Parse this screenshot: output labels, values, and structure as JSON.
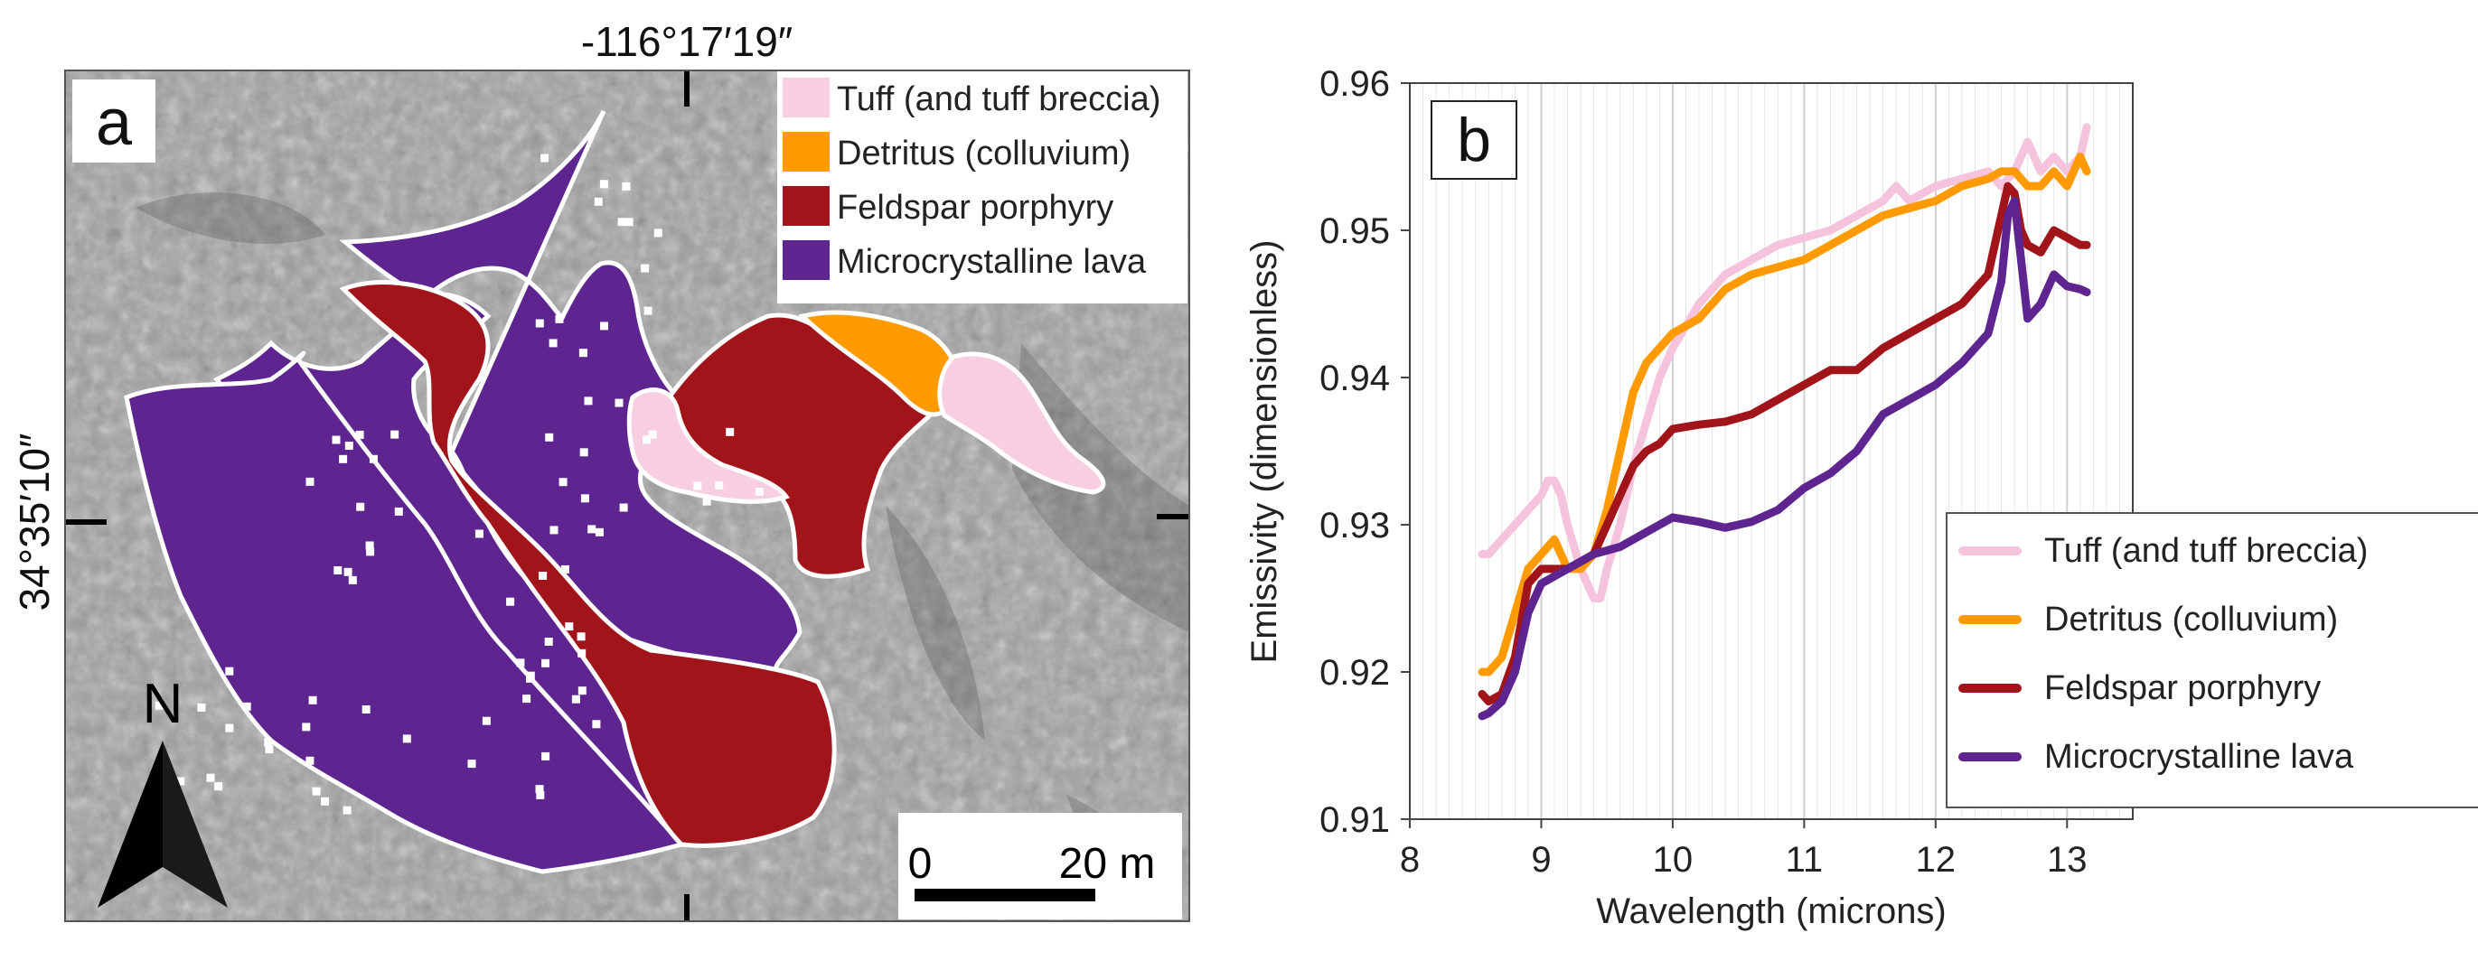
{
  "map": {
    "panel_label": "a",
    "coord_top": "-116°17′19″",
    "coord_left": "34°35′10″",
    "north_label": "N",
    "scale_start": "0",
    "scale_end": "20 m",
    "legend": [
      {
        "label": "Tuff (and tuff breccia)",
        "color": "#f7cfe1"
      },
      {
        "label": "Detritus (colluvium)",
        "color": "#ff9a00"
      },
      {
        "label": "Feldspar porphyry",
        "color": "#a1141a"
      },
      {
        "label": "Microcrystalline lava",
        "color": "#5e2590"
      }
    ],
    "colors": {
      "tuff": "#f7cfe1",
      "detritus": "#ff9a00",
      "porphyry": "#a1141a",
      "lava": "#5e2590",
      "hillshade": "#9c9c9c"
    }
  },
  "chart_data": {
    "type": "line",
    "panel_label": "b",
    "title": "",
    "xlabel": "Wavelength (microns)",
    "ylabel": "Emissivity (dimensionless)",
    "xlim": [
      8,
      13.5
    ],
    "ylim": [
      0.91,
      0.96
    ],
    "xticks": [
      8,
      9,
      10,
      11,
      12,
      13
    ],
    "yticks": [
      0.91,
      0.92,
      0.93,
      0.94,
      0.95,
      0.96
    ],
    "xtick_labels": [
      "8",
      "9",
      "10",
      "11",
      "12",
      "13"
    ],
    "ytick_labels": [
      "0.91",
      "0.92",
      "0.93",
      "0.94",
      "0.95",
      "0.96"
    ],
    "grid": "vertical",
    "legend_position": "bottom-right",
    "series": [
      {
        "name": "Tuff (and tuff breccia)",
        "color": "#f6c3dc",
        "x": [
          8.55,
          8.6,
          8.7,
          8.8,
          8.9,
          9.0,
          9.05,
          9.1,
          9.15,
          9.2,
          9.3,
          9.4,
          9.45,
          9.5,
          9.6,
          9.7,
          9.8,
          9.9,
          10.0,
          10.2,
          10.4,
          10.6,
          10.8,
          11.0,
          11.2,
          11.4,
          11.6,
          11.7,
          11.8,
          12.0,
          12.2,
          12.4,
          12.5,
          12.6,
          12.7,
          12.8,
          12.9,
          13.0,
          13.1,
          13.15
        ],
        "y": [
          0.928,
          0.928,
          0.929,
          0.93,
          0.931,
          0.932,
          0.933,
          0.933,
          0.932,
          0.93,
          0.927,
          0.925,
          0.925,
          0.927,
          0.93,
          0.934,
          0.937,
          0.94,
          0.942,
          0.945,
          0.947,
          0.948,
          0.949,
          0.9495,
          0.95,
          0.951,
          0.952,
          0.953,
          0.952,
          0.953,
          0.9535,
          0.954,
          0.953,
          0.954,
          0.956,
          0.954,
          0.955,
          0.954,
          0.955,
          0.957
        ]
      },
      {
        "name": "Detritus (colluvium)",
        "color": "#ff9a00",
        "x": [
          8.55,
          8.6,
          8.7,
          8.8,
          8.9,
          9.0,
          9.1,
          9.15,
          9.2,
          9.3,
          9.4,
          9.5,
          9.6,
          9.7,
          9.8,
          9.9,
          10.0,
          10.2,
          10.4,
          10.6,
          10.8,
          11.0,
          11.2,
          11.4,
          11.6,
          11.8,
          12.0,
          12.2,
          12.4,
          12.5,
          12.6,
          12.7,
          12.8,
          12.9,
          13.0,
          13.1,
          13.15
        ],
        "y": [
          0.92,
          0.92,
          0.921,
          0.924,
          0.927,
          0.928,
          0.929,
          0.928,
          0.927,
          0.927,
          0.928,
          0.931,
          0.935,
          0.939,
          0.941,
          0.942,
          0.943,
          0.944,
          0.946,
          0.947,
          0.9475,
          0.948,
          0.949,
          0.95,
          0.951,
          0.9515,
          0.952,
          0.953,
          0.9535,
          0.954,
          0.954,
          0.953,
          0.953,
          0.954,
          0.953,
          0.955,
          0.954
        ]
      },
      {
        "name": "Feldspar porphyry",
        "color": "#a1141a",
        "x": [
          8.55,
          8.6,
          8.7,
          8.8,
          8.9,
          9.0,
          9.1,
          9.2,
          9.3,
          9.4,
          9.5,
          9.6,
          9.7,
          9.8,
          9.9,
          10.0,
          10.2,
          10.4,
          10.6,
          10.8,
          11.0,
          11.2,
          11.4,
          11.6,
          11.8,
          12.0,
          12.2,
          12.4,
          12.5,
          12.55,
          12.6,
          12.65,
          12.7,
          12.8,
          12.9,
          13.0,
          13.1,
          13.15
        ],
        "y": [
          0.9185,
          0.918,
          0.9185,
          0.921,
          0.926,
          0.927,
          0.927,
          0.927,
          0.9275,
          0.928,
          0.93,
          0.932,
          0.934,
          0.935,
          0.9355,
          0.9365,
          0.9368,
          0.937,
          0.9375,
          0.9385,
          0.9395,
          0.9405,
          0.9405,
          0.942,
          0.943,
          0.944,
          0.945,
          0.947,
          0.951,
          0.953,
          0.9525,
          0.95,
          0.949,
          0.9485,
          0.95,
          0.9495,
          0.949,
          0.949
        ]
      },
      {
        "name": "Microcrystalline lava",
        "color": "#5e2590",
        "x": [
          8.55,
          8.6,
          8.7,
          8.8,
          8.9,
          9.0,
          9.1,
          9.2,
          9.3,
          9.4,
          9.6,
          9.8,
          10.0,
          10.2,
          10.4,
          10.6,
          10.8,
          11.0,
          11.2,
          11.4,
          11.6,
          11.8,
          12.0,
          12.2,
          12.3,
          12.4,
          12.5,
          12.55,
          12.6,
          12.65,
          12.7,
          12.75,
          12.8,
          12.9,
          13.0,
          13.1,
          13.15
        ],
        "y": [
          0.917,
          0.9172,
          0.918,
          0.92,
          0.924,
          0.926,
          0.9265,
          0.927,
          0.9275,
          0.928,
          0.9285,
          0.9295,
          0.9305,
          0.9302,
          0.9298,
          0.9302,
          0.931,
          0.9325,
          0.9335,
          0.935,
          0.9375,
          0.9385,
          0.9395,
          0.941,
          0.942,
          0.943,
          0.9465,
          0.951,
          0.952,
          0.948,
          0.944,
          0.9445,
          0.945,
          0.947,
          0.9462,
          0.946,
          0.9458
        ]
      }
    ]
  }
}
